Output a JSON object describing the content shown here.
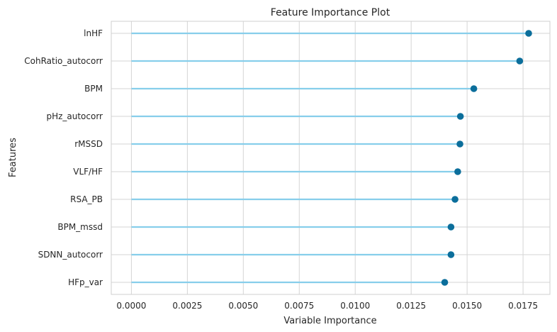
{
  "chart_data": {
    "type": "lollipop",
    "title": "Feature Importance Plot",
    "xlabel": "Variable Importance",
    "ylabel": "Features",
    "xlim": [
      -0.0009,
      0.0187
    ],
    "x_ticks": [
      0.0,
      0.0025,
      0.005,
      0.0075,
      0.01,
      0.0125,
      0.015,
      0.0175
    ],
    "x_tick_labels": [
      "0.0000",
      "0.0025",
      "0.0050",
      "0.0075",
      "0.0100",
      "0.0125",
      "0.0150",
      "0.0175"
    ],
    "grid": true,
    "categories": [
      "lnHF",
      "CohRatio_autocorr",
      "BPM",
      "pHz_autocorr",
      "rMSSD",
      "VLF/HF",
      "RSA_PB",
      "BPM_mssd",
      "SDNN_autocorr",
      "HFp_var"
    ],
    "values": [
      0.01775,
      0.01735,
      0.0153,
      0.0147,
      0.01468,
      0.01458,
      0.01446,
      0.01428,
      0.01428,
      0.014
    ],
    "colors": {
      "stem": "#87ceeb",
      "marker": "#0b6e9b",
      "grid": "#d5d5d5",
      "frame": "#cfcfcf",
      "text": "#262626"
    }
  }
}
